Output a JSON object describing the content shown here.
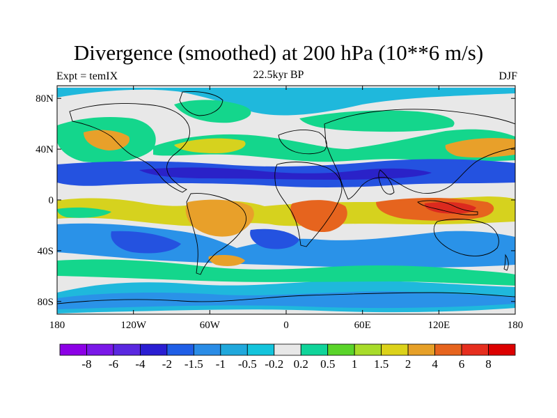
{
  "title": "Divergence (smoothed) at 200 hPa (10**6 m/s)",
  "left_label": "Expt = temIX",
  "center_label": "22.5kyr BP",
  "right_label": "DJF",
  "lat_ticks": [
    {
      "value": 80,
      "label": "80N"
    },
    {
      "value": 40,
      "label": "40N"
    },
    {
      "value": 0,
      "label": "0"
    },
    {
      "value": -40,
      "label": "40S"
    },
    {
      "value": -80,
      "label": "80S"
    }
  ],
  "lon_ticks": [
    {
      "value": -180,
      "label": "180"
    },
    {
      "value": -120,
      "label": "120W"
    },
    {
      "value": -60,
      "label": "60W"
    },
    {
      "value": 0,
      "label": "0"
    },
    {
      "value": 60,
      "label": "60E"
    },
    {
      "value": 120,
      "label": "120E"
    },
    {
      "value": 180,
      "label": "180"
    }
  ],
  "colorbar": {
    "colors": [
      "#8c00e6",
      "#7a18e8",
      "#5a28e0",
      "#2a1ed2",
      "#1f5ee6",
      "#2a8ce6",
      "#20a8dc",
      "#14c4dc",
      "#e8e8e8",
      "#10d49a",
      "#5ad42a",
      "#a8dc2a",
      "#dcd21a",
      "#e6a028",
      "#e6641e",
      "#e62e1e",
      "#dc0000"
    ],
    "labels": [
      "-8",
      "-6",
      "-4",
      "-2",
      "-1.5",
      "-1",
      "-0.5",
      "-0.2",
      "0.2",
      "0.5",
      "1",
      "1.5",
      "2",
      "4",
      "6",
      "8"
    ]
  },
  "colors": {
    "neutral": "#e8e8e8",
    "cyan": "#1fb8dc",
    "light_blue": "#2a92e8",
    "blue": "#2452e0",
    "deep_blue": "#2a22c8",
    "green": "#14d68c",
    "lime": "#7ad62a",
    "yellow": "#d6d21e",
    "orange": "#e8a02a",
    "red_orange": "#e6641e",
    "red": "#dc2a1e",
    "land_outline": "#000000"
  }
}
